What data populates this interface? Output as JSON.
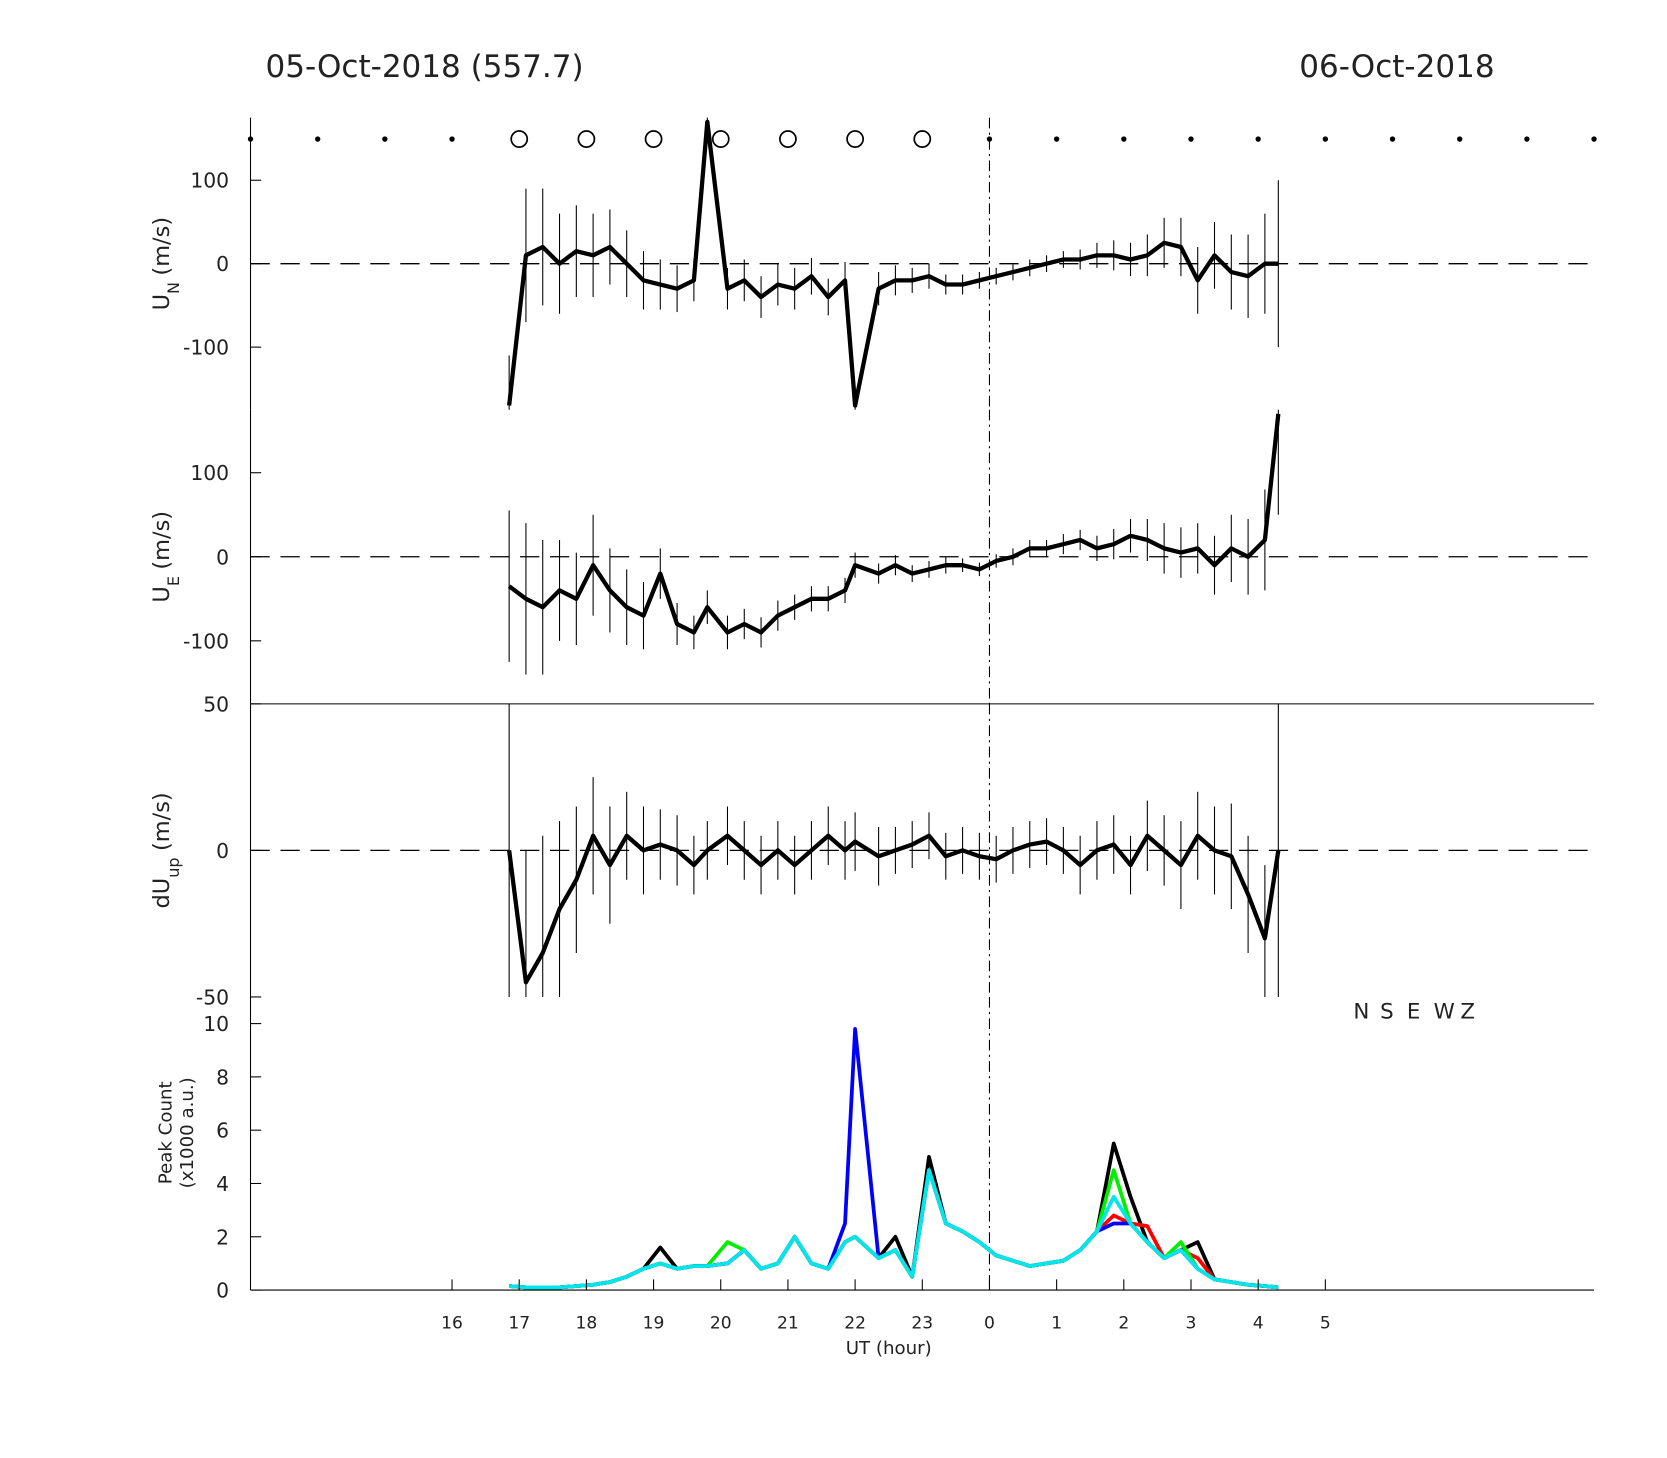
{
  "titles": {
    "left": "05-Oct-2018 (557.7)",
    "right": "06-Oct-2018"
  },
  "status_row": {
    "x": [
      13,
      14,
      15,
      16,
      17,
      18,
      19,
      20,
      21,
      22,
      23,
      24,
      25,
      26,
      27,
      28,
      29,
      30,
      31,
      32,
      33
    ],
    "symbol": [
      "dot",
      "dot",
      "dot",
      "dot",
      "circle",
      "circle",
      "circle",
      "circle",
      "circle",
      "circle",
      "circle",
      "dot",
      "dot",
      "dot",
      "dot",
      "dot",
      "dot",
      "dot",
      "dot",
      "dot",
      "dot"
    ]
  },
  "day_boundary": 24,
  "chart_data": [
    {
      "type": "line",
      "ylabel": {
        "main": "U",
        "sub": "N",
        "unit": "(m/s)"
      },
      "xlim": [
        13,
        33
      ],
      "ylim": [
        -175,
        175
      ],
      "yticks": [
        -100,
        0,
        100
      ],
      "x": [
        16.85,
        17.1,
        17.35,
        17.6,
        17.85,
        18.1,
        18.35,
        18.6,
        18.85,
        19.1,
        19.35,
        19.6,
        19.8,
        20.1,
        20.35,
        20.6,
        20.85,
        21.1,
        21.35,
        21.6,
        21.85,
        22.0,
        22.35,
        22.6,
        22.85,
        23.1,
        23.35,
        23.6,
        23.85,
        24.1,
        24.35,
        24.6,
        24.85,
        25.1,
        25.35,
        25.6,
        25.85,
        26.1,
        26.35,
        26.6,
        26.85,
        27.1,
        27.35,
        27.6,
        27.85,
        28.1,
        28.3
      ],
      "series": [
        {
          "color": "#000000",
          "values": [
            -170,
            10,
            20,
            0,
            15,
            10,
            20,
            0,
            -20,
            -25,
            -30,
            -20,
            170,
            -30,
            -20,
            -40,
            -25,
            -30,
            -15,
            -40,
            -20,
            -170,
            -30,
            -20,
            -20,
            -15,
            -25,
            -25,
            -20,
            -15,
            -10,
            -5,
            0,
            5,
            5,
            10,
            10,
            5,
            10,
            25,
            20,
            -20,
            10,
            -10,
            -15,
            0,
            0
          ],
          "errors": [
            60,
            80,
            70,
            60,
            55,
            50,
            45,
            40,
            35,
            30,
            28,
            25,
            25,
            25,
            25,
            25,
            25,
            25,
            22,
            22,
            22,
            22,
            20,
            18,
            15,
            15,
            12,
            12,
            10,
            10,
            10,
            10,
            10,
            10,
            12,
            15,
            18,
            20,
            25,
            30,
            35,
            40,
            40,
            45,
            50,
            60,
            100
          ]
        }
      ]
    },
    {
      "type": "line",
      "ylabel": {
        "main": "U",
        "sub": "E",
        "unit": "(m/s)"
      },
      "xlim": [
        13,
        33
      ],
      "ylim": [
        -175,
        175
      ],
      "yticks": [
        -100,
        0,
        100
      ],
      "x": [
        16.85,
        17.1,
        17.35,
        17.6,
        17.85,
        18.1,
        18.35,
        18.6,
        18.85,
        19.1,
        19.35,
        19.6,
        19.8,
        20.1,
        20.35,
        20.6,
        20.85,
        21.1,
        21.35,
        21.6,
        21.85,
        22.0,
        22.35,
        22.6,
        22.85,
        23.1,
        23.35,
        23.6,
        23.85,
        24.1,
        24.35,
        24.6,
        24.85,
        25.1,
        25.35,
        25.6,
        25.85,
        26.1,
        26.35,
        26.6,
        26.85,
        27.1,
        27.35,
        27.6,
        27.85,
        28.1,
        28.3
      ],
      "series": [
        {
          "color": "#000000",
          "values": [
            -35,
            -50,
            -60,
            -40,
            -50,
            -10,
            -40,
            -60,
            -70,
            -20,
            -80,
            -90,
            -60,
            -90,
            -80,
            -90,
            -70,
            -60,
            -50,
            -50,
            -40,
            -10,
            -20,
            -10,
            -20,
            -15,
            -10,
            -10,
            -15,
            -5,
            0,
            10,
            10,
            15,
            20,
            10,
            15,
            25,
            20,
            10,
            5,
            10,
            -10,
            10,
            0,
            20,
            170
          ],
          "errors": [
            90,
            90,
            80,
            60,
            55,
            60,
            50,
            45,
            40,
            30,
            25,
            20,
            20,
            20,
            18,
            18,
            18,
            15,
            15,
            15,
            15,
            15,
            12,
            12,
            10,
            10,
            10,
            8,
            8,
            8,
            10,
            10,
            10,
            12,
            12,
            15,
            18,
            20,
            25,
            30,
            30,
            30,
            35,
            40,
            45,
            60,
            120
          ]
        }
      ]
    },
    {
      "type": "line",
      "ylabel": {
        "main": "dU",
        "sub": "up",
        "unit": "(m/s)"
      },
      "xlim": [
        13,
        33
      ],
      "ylim": [
        -50,
        50
      ],
      "yticks": [
        -50,
        0,
        50
      ],
      "x": [
        16.85,
        17.1,
        17.35,
        17.6,
        17.85,
        18.1,
        18.35,
        18.6,
        18.85,
        19.1,
        19.35,
        19.6,
        19.8,
        20.1,
        20.35,
        20.6,
        20.85,
        21.1,
        21.35,
        21.6,
        21.85,
        22.0,
        22.35,
        22.6,
        22.85,
        23.1,
        23.35,
        23.6,
        23.85,
        24.1,
        24.35,
        24.6,
        24.85,
        25.1,
        25.35,
        25.6,
        25.85,
        26.1,
        26.35,
        26.6,
        26.85,
        27.1,
        27.35,
        27.6,
        27.85,
        28.1,
        28.3
      ],
      "series": [
        {
          "color": "#000000",
          "values": [
            0,
            -45,
            -35,
            -20,
            -10,
            5,
            -5,
            5,
            0,
            2,
            0,
            -5,
            0,
            5,
            0,
            -5,
            0,
            -5,
            0,
            5,
            0,
            3,
            -2,
            0,
            2,
            5,
            -2,
            0,
            -2,
            -3,
            0,
            2,
            3,
            0,
            -5,
            0,
            2,
            -5,
            5,
            0,
            -5,
            5,
            0,
            -2,
            -15,
            -30,
            0
          ],
          "errors": [
            50,
            45,
            40,
            30,
            25,
            20,
            20,
            15,
            15,
            12,
            12,
            10,
            10,
            10,
            10,
            10,
            10,
            10,
            10,
            10,
            10,
            10,
            10,
            8,
            8,
            8,
            8,
            8,
            8,
            8,
            8,
            8,
            8,
            8,
            10,
            10,
            10,
            10,
            12,
            12,
            15,
            15,
            15,
            18,
            20,
            25,
            50
          ]
        }
      ]
    },
    {
      "type": "line",
      "ylabel": {
        "lines": [
          "Peak Count",
          "(x1000 a.u.)"
        ]
      },
      "xlabel": "UT (hour)",
      "legend": "upper right",
      "xlim": [
        13,
        33
      ],
      "ylim": [
        0,
        11
      ],
      "yticks": [
        0,
        2,
        4,
        6,
        8,
        10
      ],
      "xticks": [
        16,
        17,
        18,
        19,
        20,
        21,
        22,
        23,
        {
          "value": 24,
          "label": "0"
        },
        {
          "value": 25,
          "label": "1"
        },
        {
          "value": 26,
          "label": "2"
        },
        {
          "value": 27,
          "label": "3"
        },
        {
          "value": 28,
          "label": "4"
        },
        {
          "value": 29,
          "label": "5"
        }
      ],
      "x": [
        16.85,
        17.1,
        17.35,
        17.6,
        17.85,
        18.1,
        18.35,
        18.6,
        18.85,
        19.1,
        19.35,
        19.6,
        19.8,
        20.1,
        20.35,
        20.6,
        20.85,
        21.1,
        21.35,
        21.6,
        21.85,
        22.0,
        22.35,
        22.6,
        22.85,
        23.1,
        23.35,
        23.6,
        23.85,
        24.1,
        24.35,
        24.6,
        24.85,
        25.1,
        25.35,
        25.6,
        25.85,
        26.1,
        26.35,
        26.6,
        26.85,
        27.1,
        27.35,
        27.6,
        27.85,
        28.1,
        28.3
      ],
      "series": [
        {
          "name": "N",
          "color": "#000000",
          "values": [
            0.15,
            0.1,
            0.1,
            0.1,
            0.15,
            0.2,
            0.3,
            0.5,
            0.8,
            1.6,
            0.8,
            0.9,
            0.9,
            1.0,
            1.5,
            0.8,
            1.0,
            2.0,
            1.0,
            0.8,
            1.8,
            2.0,
            1.2,
            2.0,
            0.5,
            5.0,
            2.5,
            2.2,
            1.8,
            1.3,
            1.1,
            0.9,
            1.0,
            1.1,
            1.5,
            2.2,
            5.5,
            3.5,
            1.8,
            1.2,
            1.5,
            1.8,
            0.4,
            0.3,
            0.2,
            0.15,
            0.1
          ]
        },
        {
          "name": "S",
          "color": "#ff0000",
          "values": [
            0.15,
            0.1,
            0.1,
            0.1,
            0.15,
            0.2,
            0.3,
            0.5,
            0.8,
            1.0,
            0.8,
            0.9,
            0.9,
            1.0,
            1.5,
            0.8,
            1.0,
            2.0,
            1.0,
            0.8,
            1.8,
            2.0,
            1.2,
            1.5,
            0.5,
            4.5,
            2.5,
            2.2,
            1.8,
            1.3,
            1.1,
            0.9,
            1.0,
            1.1,
            1.5,
            2.2,
            2.8,
            2.5,
            2.4,
            1.2,
            1.5,
            1.2,
            0.4,
            0.3,
            0.2,
            0.15,
            0.1
          ]
        },
        {
          "name": "E",
          "color": "#0000ff",
          "values": [
            0.15,
            0.1,
            0.1,
            0.1,
            0.15,
            0.2,
            0.3,
            0.5,
            0.8,
            1.0,
            0.8,
            0.9,
            0.9,
            1.0,
            1.5,
            0.8,
            1.0,
            2.0,
            1.0,
            0.8,
            2.5,
            9.8,
            1.2,
            1.5,
            0.5,
            4.5,
            2.5,
            2.2,
            1.8,
            1.3,
            1.1,
            0.9,
            1.0,
            1.1,
            1.5,
            2.2,
            2.5,
            2.5,
            1.8,
            1.2,
            1.5,
            0.8,
            0.4,
            0.3,
            0.2,
            0.15,
            0.1
          ]
        },
        {
          "name": "W",
          "color": "#00ee00",
          "values": [
            0.15,
            0.1,
            0.1,
            0.1,
            0.15,
            0.2,
            0.3,
            0.5,
            0.8,
            1.0,
            0.8,
            0.9,
            0.9,
            1.8,
            1.5,
            0.8,
            1.0,
            2.0,
            1.0,
            0.8,
            1.8,
            2.0,
            1.2,
            1.5,
            0.5,
            4.5,
            2.5,
            2.2,
            1.8,
            1.3,
            1.1,
            0.9,
            1.0,
            1.1,
            1.5,
            2.2,
            4.5,
            2.5,
            1.8,
            1.2,
            1.8,
            0.8,
            0.4,
            0.3,
            0.2,
            0.15,
            0.1
          ]
        },
        {
          "name": "Z",
          "color": "#00e5ee",
          "values": [
            0.15,
            0.1,
            0.1,
            0.1,
            0.15,
            0.2,
            0.3,
            0.5,
            0.8,
            1.0,
            0.8,
            0.9,
            0.9,
            1.0,
            1.5,
            0.8,
            1.0,
            2.0,
            1.0,
            0.8,
            1.8,
            2.0,
            1.2,
            1.5,
            0.5,
            4.5,
            2.5,
            2.2,
            1.8,
            1.3,
            1.1,
            0.9,
            1.0,
            1.1,
            1.5,
            2.2,
            3.5,
            2.5,
            1.8,
            1.2,
            1.5,
            0.8,
            0.4,
            0.3,
            0.2,
            0.15,
            0.1
          ]
        }
      ]
    }
  ]
}
